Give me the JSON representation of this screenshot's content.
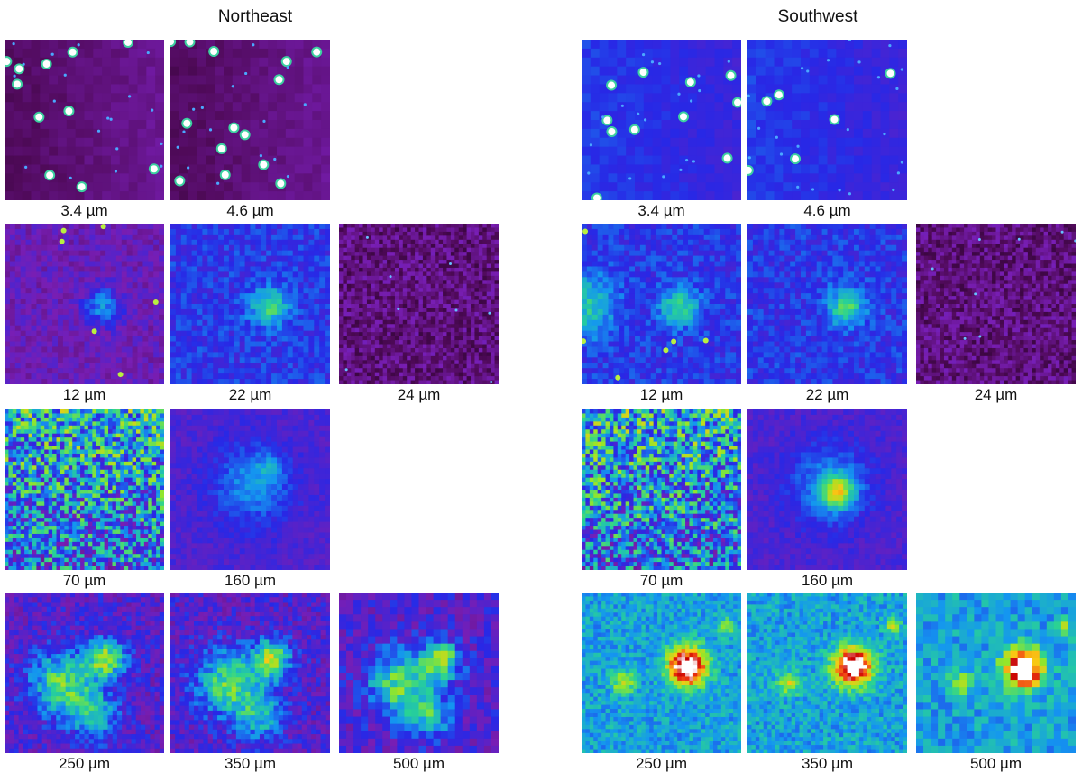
{
  "panels": [
    {
      "title": "Northeast",
      "rows": [
        {
          "tiles": [
            {
              "label": "3.4 µm",
              "style": "stars-dark"
            },
            {
              "label": "4.6 µm",
              "style": "stars-dark"
            }
          ]
        },
        {
          "tiles": [
            {
              "label": "12 µm",
              "style": "mottled-purple"
            },
            {
              "label": "22 µm",
              "style": "mottled-blue"
            },
            {
              "label": "24 µm",
              "style": "grainy-dark"
            }
          ]
        },
        {
          "tiles": [
            {
              "label": "70 µm",
              "style": "noisy-green"
            },
            {
              "label": "160 µm",
              "style": "smooth-blue"
            }
          ]
        },
        {
          "tiles": [
            {
              "label": "250 µm",
              "style": "pixel-filament"
            },
            {
              "label": "350 µm",
              "style": "pixel-filament"
            },
            {
              "label": "500 µm",
              "style": "pixel-coarse"
            }
          ]
        }
      ]
    },
    {
      "title": "Southwest",
      "rows": [
        {
          "tiles": [
            {
              "label": "3.4 µm",
              "style": "stars-blue"
            },
            {
              "label": "4.6 µm",
              "style": "stars-blue"
            }
          ]
        },
        {
          "tiles": [
            {
              "label": "12 µm",
              "style": "diffuse-blue"
            },
            {
              "label": "22 µm",
              "style": "mottled-blue"
            },
            {
              "label": "24 µm",
              "style": "grainy-dark"
            }
          ]
        },
        {
          "tiles": [
            {
              "label": "70 µm",
              "style": "noisy-green"
            },
            {
              "label": "160 µm",
              "style": "smooth-blue-core"
            }
          ]
        },
        {
          "tiles": [
            {
              "label": "250 µm",
              "style": "pixel-hot"
            },
            {
              "label": "350 µm",
              "style": "pixel-hot"
            },
            {
              "label": "500 µm",
              "style": "pixel-hot-coarse"
            }
          ]
        }
      ]
    }
  ]
}
